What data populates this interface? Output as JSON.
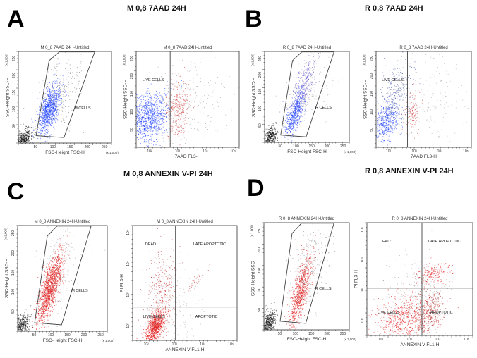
{
  "panels": [
    {
      "letter": "A",
      "title": "M 0,8 7AAD 24H",
      "plots": [
        {
          "title": "M 0_8 7AAD 24H-Untitled",
          "xlabel": "FSC-Height FSC-H",
          "ylabel": "SSC-Height SSC-H",
          "xunit": "(x 1,000)",
          "yunit": "(x 1,000)",
          "xticks": [
            "50",
            "100",
            "150",
            "200",
            "250"
          ],
          "yticks": [
            "50",
            "100",
            "150",
            "200",
            "250"
          ],
          "gate_labels": [
            "M CELLS"
          ]
        },
        {
          "title": "M 0_8 7AAD 24H-Untitled",
          "xlabel": "7AAD FL3-H",
          "ylabel": "SSC-Height SSC-H",
          "yunit": "(x 1,000)",
          "xticks": [
            "10²",
            "10³",
            "10⁴",
            "10⁵"
          ],
          "yticks": [
            "50",
            "100",
            "150",
            "200",
            "250"
          ],
          "gate_labels": [
            "LIVE CELLS"
          ]
        }
      ]
    },
    {
      "letter": "B",
      "title": "R 0,8 7AAD 24H",
      "plots": [
        {
          "title": "R 0_8 7AAD 24H-Untitled",
          "xlabel": "FSC-Height FSC-H",
          "ylabel": "SSC-Height SSC-H",
          "xunit": "(x 1,000)",
          "yunit": "(x 1,000)",
          "xticks": [
            "50",
            "100",
            "150",
            "200",
            "250"
          ],
          "yticks": [
            "50",
            "100",
            "150",
            "200",
            "250"
          ],
          "gate_labels": [
            "R CELLS"
          ]
        },
        {
          "title": "R 0_8 7AAD 24H-Untitled",
          "xlabel": "7AAD FL3-H",
          "ylabel": "SSC-Height SSC-H",
          "yunit": "(x 1,000)",
          "xticks": [
            "10²",
            "10³",
            "10⁴",
            "10⁵"
          ],
          "yticks": [
            "50",
            "100",
            "150",
            "200",
            "250"
          ],
          "gate_labels": [
            "LIVE CELLS"
          ]
        }
      ]
    },
    {
      "letter": "C",
      "title": "M 0,8 ANNEXIN V-PI 24H",
      "plots": [
        {
          "title": "M 0_8 ANNEXIN 24H-Untitled",
          "xlabel": "FSC-Height FSC-H",
          "ylabel": "SSC-Height SSC-H",
          "xunit": "(x 1,000)",
          "yunit": "(x 1,000)",
          "xticks": [
            "50",
            "100",
            "150",
            "200",
            "250"
          ],
          "yticks": [
            "50",
            "100",
            "150",
            "200",
            "250"
          ],
          "gate_labels": [
            "M CELLS"
          ]
        },
        {
          "title": "M 0_8 ANNEXIN 24H-Untitled",
          "xlabel": "ANNEXIN V FL1-H",
          "ylabel": "PI FL3-H",
          "xticks": [
            "10²",
            "10³",
            "10⁴",
            "10⁵"
          ],
          "yticks": [
            "10²",
            "10³",
            "10⁴",
            "10⁵"
          ],
          "gate_labels": [
            "DEAD",
            "LATE APOPTOTIC",
            "LIVE CELLS",
            "APOPTOTIC"
          ]
        }
      ]
    },
    {
      "letter": "D",
      "title": "R 0,8 ANNEXIN V-PI 24H",
      "plots": [
        {
          "title": "R 0_8 ANNEXIN 24H-Untitled",
          "xlabel": "FSC-Height FSC-H",
          "ylabel": "SSC-Height SSC-H",
          "xunit": "(x 1,000)",
          "yunit": "(x 1,000)",
          "xticks": [
            "50",
            "100",
            "150",
            "200",
            "250"
          ],
          "yticks": [
            "50",
            "100",
            "150",
            "200",
            "250"
          ],
          "gate_labels": [
            "R CELLS"
          ]
        },
        {
          "title": "R 0_8 ANNEXIN 24H-Untitled",
          "xlabel": "ANNEXIN V FL1-H",
          "ylabel": "PI FL3-H",
          "xticks": [
            "10²",
            "10³",
            "10⁴",
            "10⁵"
          ],
          "yticks": [
            "10²",
            "10³",
            "10⁴",
            "10⁵"
          ],
          "gate_labels": [
            "DEAD",
            "LATE APOPTOTIC",
            "LIVE CELLS",
            "APOPTOTIC"
          ]
        }
      ]
    }
  ],
  "colors": {
    "live_7aad": "#1a3cff",
    "dead_7aad": "#d04040",
    "annexin": "#e01818",
    "debris": "#111111"
  }
}
